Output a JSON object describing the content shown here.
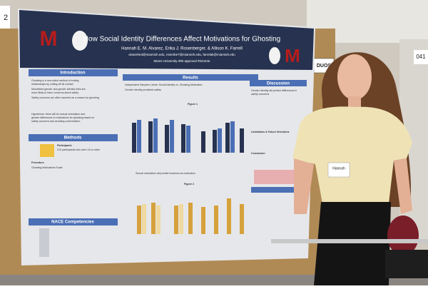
{
  "poster": {
    "title": "How Social Identity Differences Affect Motivations for Ghosting",
    "authors": "Hannah E. M. Alvarez, Erika J. Rosenberger, & Allison K. Farrell",
    "emails": "alvarehe3@miamioh.edu, rosenbe7@miamioh.edu, farrelak@miamioh.edu",
    "affiliation": "Miami University IRB approval #02424e",
    "logo": "M",
    "sections": [
      "Introduction",
      "Methods",
      "NACE Competencies",
      "Results",
      "Discussion"
    ],
    "introduction": [
      "Ghosting is a one-sided method of ending",
      "relationships by cutting off all contact",
      "Minoritized gender and gender identity folks are",
      "more likely to have concerns about safety",
      "Safety concerns are often reported as a reason for ghosting",
      "Hypothesis: there will be sexual orientation and",
      "gender differences in motivations for ghosting based on",
      "safety concerns and avoiding confrontation"
    ],
    "methods": [
      "Participants",
      "210 participants who were 18 or older",
      "Procedure",
      "Ghosting Motivations Scale"
    ],
    "results": [
      "Independent Samples t-tests: Social Identity vs. Ghosting Motivation",
      "Gender identity predicted safety",
      "Figure 1",
      "Sexual orientation did predict business as motivation",
      "Figure 2"
    ],
    "discussion": [
      "Gender identity did predict differences in",
      "safety concerns",
      "Limitations & Future Directions",
      "Conclusion"
    ]
  },
  "signs": {
    "left_number": "2",
    "booth": "DUOS",
    "right_number": "041"
  },
  "name_tag": "Hannah"
}
